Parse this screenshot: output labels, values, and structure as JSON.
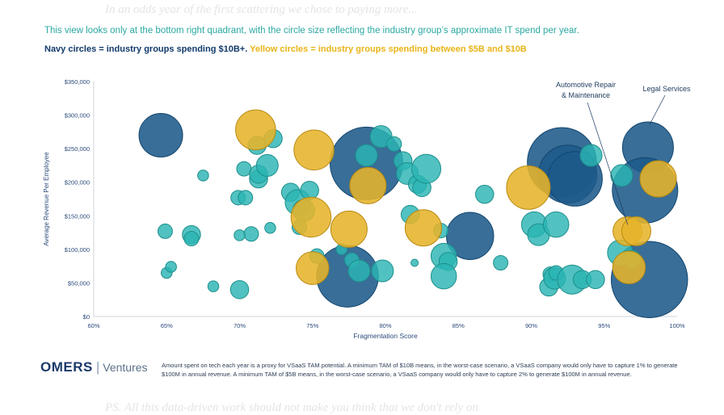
{
  "background_text": {
    "top": "In an odds year of the first scattering we chose to paying more...",
    "bottom": "PS. All this data-driven work should not make you think that we don't rely on"
  },
  "intro": "This view looks only at the bottom right quadrant, with the circle size reflecting the industry group’s approximate IT spend per year.",
  "legend": {
    "navy": "Navy circles = industry groups spending $10B+.",
    "yellow": "Yellow circles = industry groups spending between $5B and $10B"
  },
  "colors": {
    "navy": "#1c5a8a",
    "teal": "#2bb5b3",
    "yellow": "#e6b42a"
  },
  "brand": {
    "name": "OMERS",
    "sep": "|",
    "sub": "Ventures"
  },
  "footnote": "Amount spent on tech each year is a proxy for VSaaS TAM potential. A minimum TAM of $10B means, in the worst-case scenario, a VSaaS company would only have to capture 1% to generate $100M in annual revenue. A minimum TAM of $5B means, in the worst-case scenario, a VSaaS company would only have to capture 2% to generate $100M in annual revenue.",
  "chart_data": {
    "type": "scatter",
    "xlabel": "Fragmentation Score",
    "ylabel": "Average Revenue Per Employee",
    "xlim": [
      0.6,
      1.0
    ],
    "ylim": [
      0,
      350000
    ],
    "x_ticks": [
      "60%",
      "65%",
      "70%",
      "75%",
      "80%",
      "85%",
      "90%",
      "95%",
      "100%"
    ],
    "y_ticks": [
      "$0",
      "$50,000",
      "$100,000",
      "$150,000",
      "$200,000",
      "$250,000",
      "$300,000",
      "$350,000"
    ],
    "grid": false,
    "annotations": [
      {
        "label": "Automotive Repair & Maintenance",
        "lines": [
          "Automotive Repair",
          "& Maintenance"
        ],
        "x": 0.965,
        "y": 127000
      },
      {
        "label": "Legal Services",
        "lines": [
          "Legal Services"
        ],
        "x": 0.98,
        "y": 252000
      }
    ],
    "series": [
      {
        "group": "navy",
        "points": [
          {
            "x": 0.646,
            "y": 270000,
            "s": 12
          },
          {
            "x": 0.787,
            "y": 228000,
            "s": 20
          },
          {
            "x": 0.774,
            "y": 60000,
            "s": 17
          },
          {
            "x": 0.858,
            "y": 120000,
            "s": 13
          },
          {
            "x": 0.921,
            "y": 230000,
            "s": 19
          },
          {
            "x": 0.925,
            "y": 212000,
            "s": 16
          },
          {
            "x": 0.93,
            "y": 205000,
            "s": 15
          },
          {
            "x": 0.98,
            "y": 252000,
            "s": 14
          },
          {
            "x": 0.978,
            "y": 188000,
            "s": 18
          },
          {
            "x": 0.981,
            "y": 55000,
            "s": 21
          }
        ]
      },
      {
        "group": "yellow",
        "points": [
          {
            "x": 0.711,
            "y": 278000,
            "s": 11
          },
          {
            "x": 0.751,
            "y": 248000,
            "s": 11
          },
          {
            "x": 0.788,
            "y": 195000,
            "s": 10
          },
          {
            "x": 0.749,
            "y": 148000,
            "s": 11
          },
          {
            "x": 0.775,
            "y": 130000,
            "s": 10
          },
          {
            "x": 0.826,
            "y": 132000,
            "s": 10
          },
          {
            "x": 0.75,
            "y": 72000,
            "s": 9
          },
          {
            "x": 0.898,
            "y": 192000,
            "s": 12
          },
          {
            "x": 0.966,
            "y": 127000,
            "s": 8
          },
          {
            "x": 0.972,
            "y": 127000,
            "s": 8
          },
          {
            "x": 0.967,
            "y": 73000,
            "s": 9
          },
          {
            "x": 0.987,
            "y": 205000,
            "s": 10
          }
        ]
      },
      {
        "group": "teal",
        "points": [
          {
            "x": 0.649,
            "y": 127000,
            "s": 4
          },
          {
            "x": 0.667,
            "y": 122000,
            "s": 5
          },
          {
            "x": 0.667,
            "y": 116000,
            "s": 4
          },
          {
            "x": 0.675,
            "y": 210000,
            "s": 3
          },
          {
            "x": 0.65,
            "y": 65000,
            "s": 3
          },
          {
            "x": 0.653,
            "y": 74000,
            "s": 3
          },
          {
            "x": 0.682,
            "y": 45000,
            "s": 3
          },
          {
            "x": 0.7,
            "y": 40000,
            "s": 5
          },
          {
            "x": 0.699,
            "y": 177000,
            "s": 4
          },
          {
            "x": 0.704,
            "y": 177000,
            "s": 4
          },
          {
            "x": 0.703,
            "y": 220000,
            "s": 4
          },
          {
            "x": 0.712,
            "y": 255000,
            "s": 5
          },
          {
            "x": 0.713,
            "y": 205000,
            "s": 5
          },
          {
            "x": 0.713,
            "y": 212000,
            "s": 5
          },
          {
            "x": 0.719,
            "y": 225000,
            "s": 6
          },
          {
            "x": 0.723,
            "y": 265000,
            "s": 5
          },
          {
            "x": 0.708,
            "y": 123000,
            "s": 4
          },
          {
            "x": 0.721,
            "y": 132000,
            "s": 3
          },
          {
            "x": 0.7,
            "y": 121000,
            "s": 3
          },
          {
            "x": 0.735,
            "y": 185000,
            "s": 5
          },
          {
            "x": 0.74,
            "y": 170000,
            "s": 7
          },
          {
            "x": 0.744,
            "y": 158000,
            "s": 6
          },
          {
            "x": 0.748,
            "y": 188000,
            "s": 5
          },
          {
            "x": 0.741,
            "y": 133000,
            "s": 4
          },
          {
            "x": 0.753,
            "y": 90000,
            "s": 4
          },
          {
            "x": 0.77,
            "y": 100000,
            "s": 3
          },
          {
            "x": 0.777,
            "y": 84000,
            "s": 4
          },
          {
            "x": 0.782,
            "y": 68000,
            "s": 6
          },
          {
            "x": 0.798,
            "y": 68000,
            "s": 6
          },
          {
            "x": 0.787,
            "y": 240000,
            "s": 6
          },
          {
            "x": 0.797,
            "y": 268000,
            "s": 6
          },
          {
            "x": 0.806,
            "y": 257000,
            "s": 4
          },
          {
            "x": 0.812,
            "y": 232000,
            "s": 5
          },
          {
            "x": 0.815,
            "y": 213000,
            "s": 6
          },
          {
            "x": 0.822,
            "y": 197000,
            "s": 5
          },
          {
            "x": 0.825,
            "y": 192000,
            "s": 5
          },
          {
            "x": 0.828,
            "y": 220000,
            "s": 8
          },
          {
            "x": 0.817,
            "y": 152000,
            "s": 5
          },
          {
            "x": 0.838,
            "y": 128000,
            "s": 4
          },
          {
            "x": 0.82,
            "y": 80000,
            "s": 2
          },
          {
            "x": 0.84,
            "y": 90000,
            "s": 7
          },
          {
            "x": 0.843,
            "y": 82000,
            "s": 5
          },
          {
            "x": 0.84,
            "y": 60000,
            "s": 7
          },
          {
            "x": 0.868,
            "y": 182000,
            "s": 5
          },
          {
            "x": 0.879,
            "y": 80000,
            "s": 4
          },
          {
            "x": 0.902,
            "y": 137000,
            "s": 7
          },
          {
            "x": 0.905,
            "y": 122000,
            "s": 6
          },
          {
            "x": 0.917,
            "y": 137000,
            "s": 7
          },
          {
            "x": 0.912,
            "y": 44000,
            "s": 5
          },
          {
            "x": 0.913,
            "y": 63000,
            "s": 4
          },
          {
            "x": 0.916,
            "y": 57000,
            "s": 6
          },
          {
            "x": 0.917,
            "y": 65000,
            "s": 4
          },
          {
            "x": 0.928,
            "y": 55000,
            "s": 8
          },
          {
            "x": 0.935,
            "y": 55000,
            "s": 5
          },
          {
            "x": 0.941,
            "y": 240000,
            "s": 6
          },
          {
            "x": 0.944,
            "y": 55000,
            "s": 5
          },
          {
            "x": 0.961,
            "y": 95000,
            "s": 7
          },
          {
            "x": 0.962,
            "y": 210000,
            "s": 6
          },
          {
            "x": 0.969,
            "y": 85000,
            "s": 5
          }
        ]
      }
    ]
  }
}
